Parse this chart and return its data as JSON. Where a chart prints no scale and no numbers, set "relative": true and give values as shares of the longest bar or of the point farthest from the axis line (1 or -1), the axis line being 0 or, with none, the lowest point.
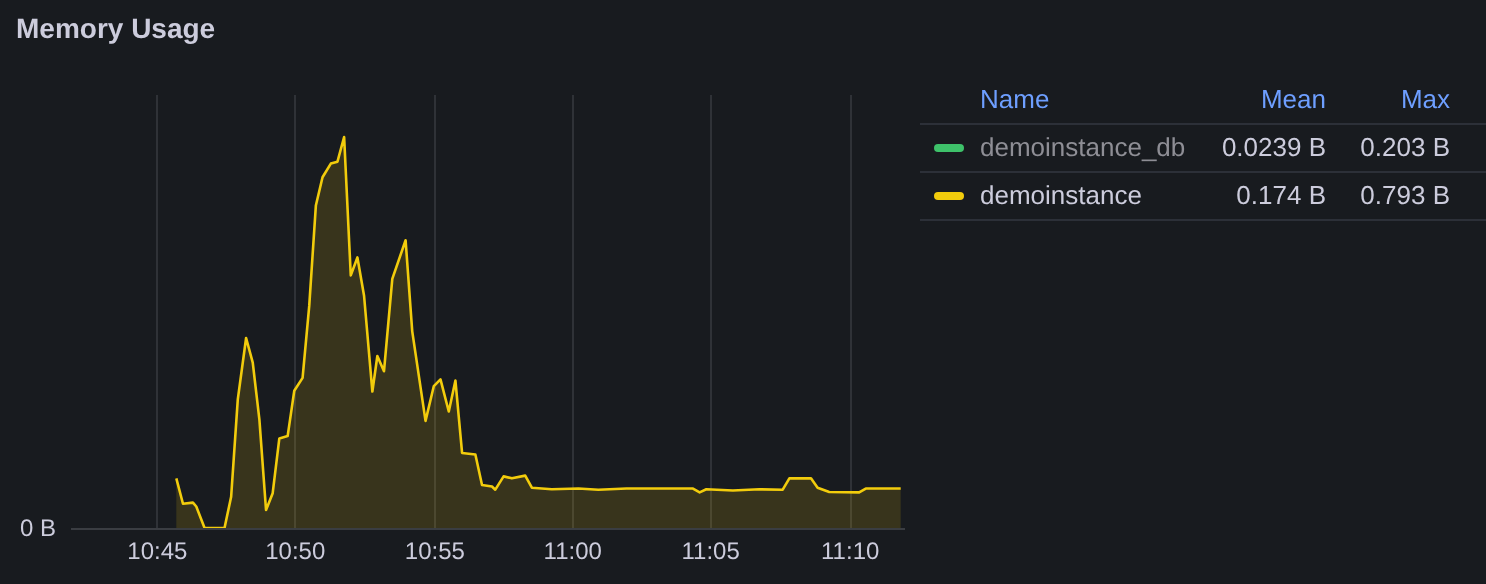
{
  "chart_data": {
    "type": "area",
    "title": "Memory Usage",
    "relative": true,
    "grid": "x",
    "legend": "top right",
    "xlim": [
      10.698,
      11.2
    ],
    "xticks": [
      {
        "value": 10.75,
        "label": "10:45"
      },
      {
        "value": 10.833,
        "label": "10:50"
      },
      {
        "value": 10.917,
        "label": "10:55"
      },
      {
        "value": 11.0,
        "label": "11:00"
      },
      {
        "value": 11.083,
        "label": "11:05"
      },
      {
        "value": 11.167,
        "label": "11:10"
      }
    ],
    "annotations": [
      "Name",
      "Mean",
      "Max",
      "0.0239 B",
      "0.203 B",
      "0.174 B",
      "0.793 B",
      "0 B"
    ],
    "series": [
      {
        "name": "demoinstance_db",
        "color": "#3ec26a"
      },
      {
        "name": "demoinstance",
        "color": "#f2cc0c",
        "x": [
          10.762,
          10.766,
          10.772,
          10.774,
          10.779,
          10.791,
          10.795,
          10.799,
          10.804,
          10.808,
          10.812,
          10.816,
          10.82,
          10.824,
          10.829,
          10.833,
          10.838,
          10.842,
          10.846,
          10.85,
          10.855,
          10.859,
          10.863,
          10.867,
          10.871,
          10.875,
          10.88,
          10.883,
          10.887,
          10.892,
          10.9,
          10.904,
          10.912,
          10.917,
          10.921,
          10.926,
          10.93,
          10.934,
          10.942,
          10.946,
          10.952,
          10.954,
          10.959,
          10.964,
          10.972,
          10.976,
          10.988,
          11.004,
          11.016,
          11.033,
          11.073,
          11.077,
          11.081,
          11.097,
          11.113,
          11.127,
          11.131,
          11.144,
          11.148,
          11.155,
          11.173,
          11.177,
          11.198
        ],
        "values": [
          0.127,
          0.062,
          0.065,
          0.055,
          0,
          0,
          0.08,
          0.329,
          0.486,
          0.423,
          0.277,
          0.046,
          0.089,
          0.229,
          0.235,
          0.351,
          0.384,
          0.568,
          0.825,
          0.897,
          0.932,
          0.937,
          1,
          0.646,
          0.692,
          0.594,
          0.349,
          0.44,
          0.401,
          0.637,
          0.736,
          0.503,
          0.274,
          0.363,
          0.38,
          0.298,
          0.377,
          0.192,
          0.188,
          0.11,
          0.106,
          0.098,
          0.132,
          0.127,
          0.134,
          0.103,
          0.099,
          0.101,
          0.098,
          0.101,
          0.101,
          0.091,
          0.099,
          0.096,
          0.099,
          0.098,
          0.127,
          0.127,
          0.103,
          0.092,
          0.091,
          0.101,
          0.101
        ]
      }
    ]
  }
}
